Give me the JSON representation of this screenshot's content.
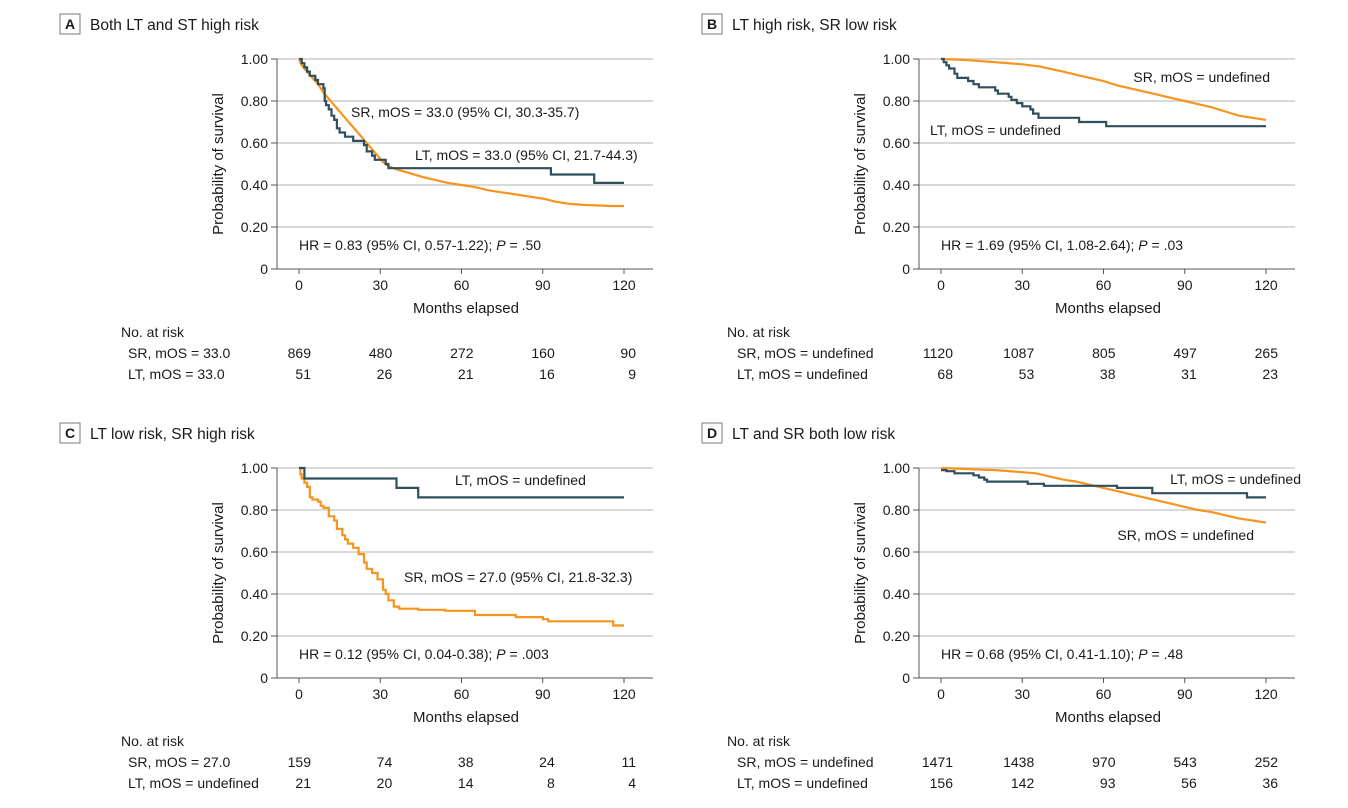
{
  "colors": {
    "SR": "#f7941d",
    "LT": "#2f4f5c",
    "grid": "#d9d9d9",
    "axis": "#555555",
    "text": "#1a1a1a",
    "label_box_border": "#7a7a7a"
  },
  "chart_data": [
    {
      "type": "line",
      "subtype": "kaplan-meier",
      "panel_letter": "A",
      "title": "Both LT and ST high risk",
      "xlabel": "Months elapsed",
      "ylabel": "Probability of survival",
      "xlim": [
        0,
        120
      ],
      "ylim": [
        0,
        1
      ],
      "xticks": [
        0,
        30,
        60,
        90,
        120
      ],
      "xtick_labels": [
        "0",
        "30",
        "60",
        "90",
        "120"
      ],
      "yticks": [
        0,
        0.2,
        0.4,
        0.6,
        0.8,
        1.0
      ],
      "ytick_labels": [
        "0",
        "0.20",
        "0.40",
        "0.60",
        "0.80",
        "1.00"
      ],
      "grid": true,
      "series": [
        {
          "name": "SR",
          "label": "SR, mOS = 33.0 (95% CI, 30.3-35.7)",
          "step": false,
          "points": [
            [
              0,
              1.0
            ],
            [
              1,
              0.97
            ],
            [
              3,
              0.94
            ],
            [
              5,
              0.91
            ],
            [
              7,
              0.88
            ],
            [
              9,
              0.84
            ],
            [
              11,
              0.81
            ],
            [
              13,
              0.78
            ],
            [
              15,
              0.75
            ],
            [
              17,
              0.72
            ],
            [
              19,
              0.69
            ],
            [
              21,
              0.66
            ],
            [
              23,
              0.63
            ],
            [
              25,
              0.6
            ],
            [
              27,
              0.57
            ],
            [
              29,
              0.54
            ],
            [
              31,
              0.51
            ],
            [
              33,
              0.49
            ],
            [
              36,
              0.475
            ],
            [
              40,
              0.46
            ],
            [
              45,
              0.44
            ],
            [
              50,
              0.425
            ],
            [
              55,
              0.41
            ],
            [
              60,
              0.4
            ],
            [
              65,
              0.39
            ],
            [
              70,
              0.375
            ],
            [
              75,
              0.365
            ],
            [
              80,
              0.355
            ],
            [
              85,
              0.345
            ],
            [
              90,
              0.335
            ],
            [
              95,
              0.32
            ],
            [
              100,
              0.31
            ],
            [
              105,
              0.305
            ],
            [
              110,
              0.303
            ],
            [
              115,
              0.3
            ],
            [
              120,
              0.3
            ]
          ]
        },
        {
          "name": "LT",
          "label": "LT, mOS = 33.0 (95% CI, 21.7-44.3)",
          "step": true,
          "points": [
            [
              0,
              1.0
            ],
            [
              1,
              0.98
            ],
            [
              2,
              0.96
            ],
            [
              3,
              0.94
            ],
            [
              4,
              0.92
            ],
            [
              6,
              0.9
            ],
            [
              7,
              0.88
            ],
            [
              9,
              0.86
            ],
            [
              9.5,
              0.8
            ],
            [
              10,
              0.78
            ],
            [
              11,
              0.76
            ],
            [
              12,
              0.73
            ],
            [
              13,
              0.71
            ],
            [
              14,
              0.67
            ],
            [
              15,
              0.65
            ],
            [
              17,
              0.63
            ],
            [
              20,
              0.61
            ],
            [
              24,
              0.59
            ],
            [
              25,
              0.56
            ],
            [
              27,
              0.54
            ],
            [
              28,
              0.52
            ],
            [
              32,
              0.5
            ],
            [
              33,
              0.48
            ],
            [
              93,
              0.45
            ],
            [
              109,
              0.41
            ],
            [
              120,
              0.41
            ]
          ]
        }
      ],
      "annotations": [
        "SR, mOS = 33.0 (95% CI, 30.3-35.7)",
        "LT, mOS = 33.0 (95% CI, 21.7-44.3)"
      ],
      "hr_text": {
        "pre": "HR = 0.83 (95% CI, 0.57-1.22); ",
        "p_symbol": "P",
        "post": " = .50"
      },
      "risk_table": {
        "header": "No. at risk",
        "rows": [
          {
            "label": "SR, mOS = 33.0",
            "values": [
              869,
              480,
              272,
              160,
              90
            ]
          },
          {
            "label": "LT, mOS = 33.0",
            "values": [
              51,
              26,
              21,
              16,
              9
            ]
          }
        ]
      }
    },
    {
      "type": "line",
      "subtype": "kaplan-meier",
      "panel_letter": "B",
      "title": "LT high risk, SR low risk",
      "xlabel": "Months elapsed",
      "ylabel": "Probability of survival",
      "xlim": [
        0,
        120
      ],
      "ylim": [
        0,
        1
      ],
      "xticks": [
        0,
        30,
        60,
        90,
        120
      ],
      "xtick_labels": [
        "0",
        "30",
        "60",
        "90",
        "120"
      ],
      "yticks": [
        0,
        0.2,
        0.4,
        0.6,
        0.8,
        1.0
      ],
      "ytick_labels": [
        "0",
        "0.20",
        "0.40",
        "0.60",
        "0.80",
        "1.00"
      ],
      "grid": true,
      "series": [
        {
          "name": "SR",
          "label": "SR, mOS = undefined",
          "step": false,
          "points": [
            [
              0,
              1.0
            ],
            [
              10,
              0.995
            ],
            [
              20,
              0.985
            ],
            [
              30,
              0.975
            ],
            [
              36,
              0.965
            ],
            [
              45,
              0.94
            ],
            [
              50,
              0.925
            ],
            [
              55,
              0.91
            ],
            [
              60,
              0.895
            ],
            [
              65,
              0.875
            ],
            [
              70,
              0.86
            ],
            [
              75,
              0.845
            ],
            [
              80,
              0.83
            ],
            [
              85,
              0.815
            ],
            [
              90,
              0.8
            ],
            [
              95,
              0.785
            ],
            [
              100,
              0.77
            ],
            [
              105,
              0.75
            ],
            [
              110,
              0.73
            ],
            [
              115,
              0.72
            ],
            [
              120,
              0.71
            ]
          ]
        },
        {
          "name": "LT",
          "label": "LT, mOS = undefined",
          "step": true,
          "points": [
            [
              0,
              1.0
            ],
            [
              1,
              0.985
            ],
            [
              2,
              0.97
            ],
            [
              3,
              0.955
            ],
            [
              5,
              0.93
            ],
            [
              6,
              0.91
            ],
            [
              10,
              0.895
            ],
            [
              12,
              0.88
            ],
            [
              14,
              0.865
            ],
            [
              20,
              0.85
            ],
            [
              21,
              0.835
            ],
            [
              25,
              0.82
            ],
            [
              26,
              0.805
            ],
            [
              28,
              0.79
            ],
            [
              30,
              0.775
            ],
            [
              33,
              0.76
            ],
            [
              34,
              0.74
            ],
            [
              36,
              0.72
            ],
            [
              51,
              0.7
            ],
            [
              61,
              0.68
            ],
            [
              120,
              0.68
            ]
          ]
        }
      ],
      "annotations": [
        "SR, mOS = undefined",
        "LT, mOS = undefined"
      ],
      "hr_text": {
        "pre": "HR = 1.69 (95% CI, 1.08-2.64); ",
        "p_symbol": "P",
        "post": " = .03"
      },
      "risk_table": {
        "header": "No. at risk",
        "rows": [
          {
            "label": "SR, mOS = undefined",
            "values": [
              1120,
              1087,
              805,
              497,
              265
            ]
          },
          {
            "label": "LT, mOS = undefined",
            "values": [
              68,
              53,
              38,
              31,
              23
            ]
          }
        ]
      }
    },
    {
      "type": "line",
      "subtype": "kaplan-meier",
      "panel_letter": "C",
      "title": "LT low risk, SR high risk",
      "xlabel": "Months elapsed",
      "ylabel": "Probability of survival",
      "xlim": [
        0,
        120
      ],
      "ylim": [
        0,
        1
      ],
      "xticks": [
        0,
        30,
        60,
        90,
        120
      ],
      "xtick_labels": [
        "0",
        "30",
        "60",
        "90",
        "120"
      ],
      "yticks": [
        0,
        0.2,
        0.4,
        0.6,
        0.8,
        1.0
      ],
      "ytick_labels": [
        "0",
        "0.20",
        "0.40",
        "0.60",
        "0.80",
        "1.00"
      ],
      "grid": true,
      "series": [
        {
          "name": "SR",
          "label": "SR, mOS = 27.0 (95% CI, 21.8-32.3)",
          "step": true,
          "points": [
            [
              0,
              1.0
            ],
            [
              0.5,
              0.97
            ],
            [
              1,
              0.95
            ],
            [
              2,
              0.93
            ],
            [
              3,
              0.91
            ],
            [
              4,
              0.86
            ],
            [
              5,
              0.85
            ],
            [
              7,
              0.84
            ],
            [
              8,
              0.82
            ],
            [
              9,
              0.81
            ],
            [
              11,
              0.77
            ],
            [
              13,
              0.75
            ],
            [
              14,
              0.71
            ],
            [
              16,
              0.68
            ],
            [
              17,
              0.66
            ],
            [
              18,
              0.64
            ],
            [
              20,
              0.62
            ],
            [
              22,
              0.59
            ],
            [
              24,
              0.55
            ],
            [
              25,
              0.52
            ],
            [
              27,
              0.5
            ],
            [
              29,
              0.47
            ],
            [
              31,
              0.42
            ],
            [
              32,
              0.4
            ],
            [
              33,
              0.37
            ],
            [
              35,
              0.34
            ],
            [
              37,
              0.33
            ],
            [
              44,
              0.325
            ],
            [
              54,
              0.32
            ],
            [
              65,
              0.3
            ],
            [
              80,
              0.29
            ],
            [
              90,
              0.28
            ],
            [
              92,
              0.27
            ],
            [
              116,
              0.25
            ],
            [
              120,
              0.25
            ]
          ]
        },
        {
          "name": "LT",
          "label": "LT, mOS = undefined",
          "step": true,
          "points": [
            [
              0,
              1.0
            ],
            [
              2,
              0.95
            ],
            [
              36,
              0.905
            ],
            [
              44,
              0.86
            ],
            [
              120,
              0.86
            ]
          ]
        }
      ],
      "annotations": [
        "LT, mOS = undefined",
        "SR, mOS = 27.0 (95% CI, 21.8-32.3)"
      ],
      "hr_text": {
        "pre": "HR = 0.12 (95% CI, 0.04-0.38); ",
        "p_symbol": "P",
        "post": " = .003"
      },
      "risk_table": {
        "header": "No. at risk",
        "rows": [
          {
            "label": "SR, mOS = 27.0",
            "values": [
              159,
              74,
              38,
              24,
              11
            ]
          },
          {
            "label": "LT, mOS = undefined",
            "values": [
              21,
              20,
              14,
              8,
              4
            ]
          }
        ]
      }
    },
    {
      "type": "line",
      "subtype": "kaplan-meier",
      "panel_letter": "D",
      "title": "LT and SR both low risk",
      "xlabel": "Months elapsed",
      "ylabel": "Probability of survival",
      "xlim": [
        0,
        120
      ],
      "ylim": [
        0,
        1
      ],
      "xticks": [
        0,
        30,
        60,
        90,
        120
      ],
      "xtick_labels": [
        "0",
        "30",
        "60",
        "90",
        "120"
      ],
      "yticks": [
        0,
        0.2,
        0.4,
        0.6,
        0.8,
        1.0
      ],
      "ytick_labels": [
        "0",
        "0.20",
        "0.40",
        "0.60",
        "0.80",
        "1.00"
      ],
      "grid": true,
      "series": [
        {
          "name": "SR",
          "label": "SR, mOS = undefined",
          "step": false,
          "points": [
            [
              0,
              1.0
            ],
            [
              10,
              0.995
            ],
            [
              20,
              0.99
            ],
            [
              30,
              0.98
            ],
            [
              35,
              0.975
            ],
            [
              40,
              0.96
            ],
            [
              45,
              0.945
            ],
            [
              50,
              0.935
            ],
            [
              55,
              0.92
            ],
            [
              60,
              0.905
            ],
            [
              65,
              0.89
            ],
            [
              70,
              0.875
            ],
            [
              75,
              0.86
            ],
            [
              80,
              0.845
            ],
            [
              85,
              0.83
            ],
            [
              90,
              0.815
            ],
            [
              95,
              0.8
            ],
            [
              100,
              0.79
            ],
            [
              105,
              0.775
            ],
            [
              110,
              0.76
            ],
            [
              115,
              0.75
            ],
            [
              120,
              0.74
            ]
          ]
        },
        {
          "name": "LT",
          "label": "LT, mOS = undefined",
          "step": true,
          "points": [
            [
              0,
              0.99
            ],
            [
              2,
              0.985
            ],
            [
              5,
              0.975
            ],
            [
              12,
              0.965
            ],
            [
              14,
              0.955
            ],
            [
              16,
              0.945
            ],
            [
              17,
              0.935
            ],
            [
              32,
              0.925
            ],
            [
              38,
              0.915
            ],
            [
              65,
              0.905
            ],
            [
              78,
              0.88
            ],
            [
              113,
              0.86
            ],
            [
              120,
              0.86
            ]
          ]
        }
      ],
      "annotations": [
        "LT, mOS = undefined",
        "SR, mOS = undefined"
      ],
      "hr_text": {
        "pre": "HR = 0.68 (95% CI, 0.41-1.10); ",
        "p_symbol": "P",
        "post": " = .48"
      },
      "risk_table": {
        "header": "No. at risk",
        "rows": [
          {
            "label": "SR, mOS = undefined",
            "values": [
              1471,
              1438,
              970,
              543,
              252
            ]
          },
          {
            "label": "LT, mOS = undefined",
            "values": [
              156,
              142,
              93,
              56,
              36
            ]
          }
        ]
      }
    }
  ]
}
